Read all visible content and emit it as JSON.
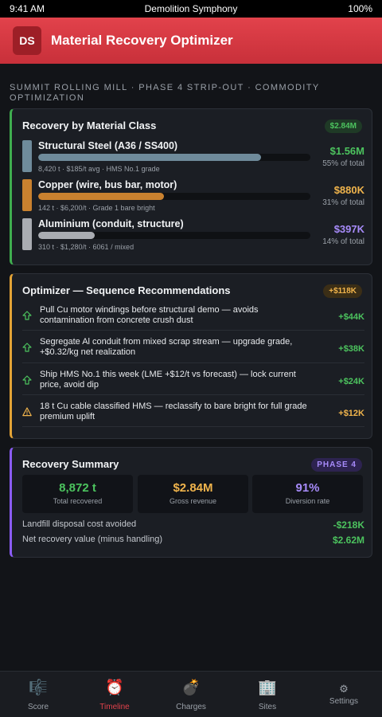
{
  "status": {
    "time": "9:41 AM",
    "carrier": "Demolition Symphony",
    "battery": "100%"
  },
  "app": {
    "logo": "DS",
    "title": "Material Recovery Optimizer"
  },
  "subtitle": "SUMMIT ROLLING MILL · PHASE 4 STRIP-OUT · COMMODITY OPTIMIZATION",
  "recovery": {
    "title": "Recovery by Material Class",
    "badge": "$2.84M",
    "materials": [
      {
        "name": "Structural Steel (A36 / SS400)",
        "meta": "8,420 t · $185/t avg · HMS No.1 grade",
        "amount": "$1.56M",
        "pct": "55% of total",
        "share": 0.55,
        "color": "#6f8b9b",
        "amount_color": "#4cc35e"
      },
      {
        "name": "Copper (wire, bus bar, motor)",
        "meta": "142 t · $6,200/t · Grade 1 bare bright",
        "amount": "$880K",
        "pct": "31% of total",
        "share": 0.31,
        "color": "#c9812f",
        "amount_color": "#f0b44c"
      },
      {
        "name": "Aluminium (conduit, structure)",
        "meta": "310 t · $1,280/t · 6061 / mixed",
        "amount": "$397K",
        "pct": "14% of total",
        "share": 0.14,
        "color": "#a9acb2",
        "amount_color": "#a78bfa"
      }
    ]
  },
  "optimizer": {
    "title": "Optimizer — Sequence Recommendations",
    "badge": "+$118K",
    "items": [
      {
        "text": "Pull Cu motor windings before structural demo — avoids contamination from concrete crush dust",
        "value": "+$44K",
        "icon": "arrow-up-icon"
      },
      {
        "text": "Segregate Al conduit from mixed scrap stream — upgrade grade, +$0.32/kg net realization",
        "value": "+$38K",
        "icon": "arrow-up-icon"
      },
      {
        "text": "Ship HMS No.1 this week (LME +$12/t vs forecast) — lock current price, avoid dip",
        "value": "+$24K",
        "icon": "arrow-up-icon"
      },
      {
        "text": "18 t Cu cable classified HMS — reclassify to bare bright for full grade premium uplift",
        "value": "+$12K",
        "icon": "warning-icon"
      }
    ]
  },
  "summary": {
    "title": "Recovery Summary",
    "badge": "PHASE 4",
    "kpis": [
      {
        "value": "8,872 t",
        "label": "Total recovered",
        "color": "#4cc35e"
      },
      {
        "value": "$2.84M",
        "label": "Gross revenue",
        "color": "#f0b44c"
      },
      {
        "value": "91%",
        "label": "Diversion rate",
        "color": "#a78bfa"
      }
    ],
    "rows": [
      {
        "label": "Landfill disposal cost avoided",
        "value": "-$218K"
      },
      {
        "label": "Net recovery value (minus handling)",
        "value": "$2.62M"
      }
    ]
  },
  "tabs": [
    {
      "label": "Score",
      "icon": "🎼"
    },
    {
      "label": "Timeline",
      "icon": "⏰"
    },
    {
      "label": "Charges",
      "icon": "💣"
    },
    {
      "label": "Sites",
      "icon": "🏢"
    },
    {
      "label": "Settings",
      "icon": "⚙"
    }
  ],
  "active_tab": "Timeline"
}
